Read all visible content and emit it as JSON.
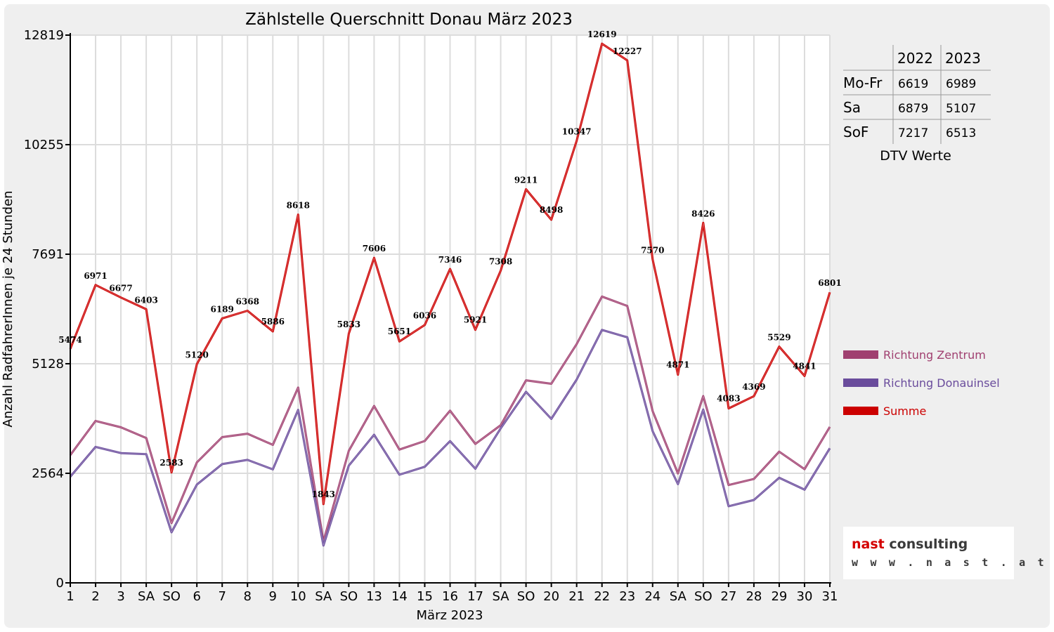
{
  "chart_data": {
    "type": "line",
    "title": "Zählstelle Querschnitt Donau März 2023",
    "xlabel": "März 2023",
    "ylabel": "Anzahl RadfahrerInnen je 24 Stunden",
    "yticks": [
      "0",
      "2564",
      "5128",
      "7691",
      "10255",
      "12819"
    ],
    "ylim": [
      0,
      12819
    ],
    "grid": true,
    "legend_position": "right",
    "categories": [
      "1",
      "2",
      "3",
      "SA",
      "SO",
      "6",
      "7",
      "8",
      "9",
      "10",
      "SA",
      "SO",
      "13",
      "14",
      "15",
      "16",
      "17",
      "SA",
      "SO",
      "20",
      "21",
      "22",
      "23",
      "24",
      "SA",
      "SO",
      "27",
      "28",
      "29",
      "30",
      "31"
    ],
    "weekend_categories": [
      "SO"
    ],
    "weekend_color": "#e00000",
    "series": [
      {
        "name": "Richtung Zentrum",
        "color": "#a04070",
        "values": [
          2990,
          3790,
          3640,
          3390,
          1400,
          2820,
          3410,
          3490,
          3230,
          4570,
          970,
          3090,
          4140,
          3120,
          3320,
          4030,
          3250,
          3690,
          4740,
          4660,
          5590,
          6700,
          6480,
          4020,
          2560,
          4370,
          2290,
          2430,
          3070,
          2660,
          3650
        ]
      },
      {
        "name": "Richtung Donauinsel",
        "color": "#6a4c9c",
        "values": [
          2484,
          3181,
          3037,
          3013,
          1183,
          2300,
          2779,
          2878,
          2656,
          4048,
          873,
          2743,
          3466,
          2531,
          2716,
          3316,
          2671,
          3618,
          4471,
          3838,
          4757,
          5919,
          5747,
          3550,
          2311,
          4056,
          1793,
          1939,
          2459,
          2181,
          3151
        ]
      },
      {
        "name": "Summe",
        "color": "#cc0000",
        "labeled": true,
        "values": [
          5474,
          6971,
          6677,
          6403,
          2583,
          5120,
          6189,
          6368,
          5886,
          8618,
          1843,
          5833,
          7606,
          5651,
          6036,
          7346,
          5921,
          7308,
          9211,
          8498,
          10347,
          12619,
          12227,
          7570,
          4871,
          8426,
          4083,
          4369,
          5529,
          4841,
          6801
        ]
      }
    ]
  },
  "dtv_table": {
    "headers": [
      "",
      "2022",
      "2023"
    ],
    "rows": [
      [
        "Mo-Fr",
        "6619",
        "6989"
      ],
      [
        "Sa",
        "6879",
        "5107"
      ],
      [
        "SoF",
        "7217",
        "6513"
      ]
    ],
    "caption": "DTV Werte"
  },
  "logo": {
    "brand_red": "nast",
    "brand_dark": "consulting",
    "url": "w w w . n a s t . a t"
  }
}
